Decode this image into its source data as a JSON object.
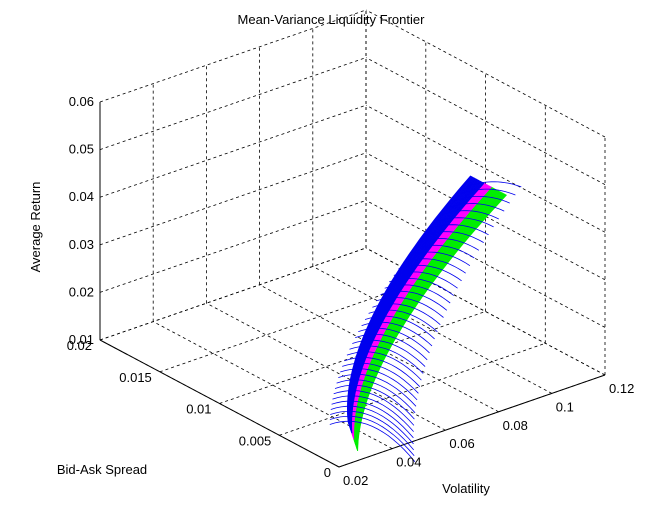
{
  "chart_data": {
    "type": "surface3d",
    "title": "Mean-Variance Liquidity Frontier",
    "axes": {
      "x": {
        "label": "Volatility",
        "range": [
          0.02,
          0.12
        ],
        "ticks": [
          "0.02",
          "0.04",
          "0.06",
          "0.08",
          "0.1",
          "0.12"
        ]
      },
      "y": {
        "label": "Bid-Ask Spread",
        "range": [
          0,
          0.02
        ],
        "ticks": [
          "0",
          "0.005",
          "0.01",
          "0.015",
          "0.02"
        ]
      },
      "z": {
        "label": "Average Return",
        "range": [
          0.01,
          0.06
        ],
        "ticks": [
          "0.01",
          "0.02",
          "0.03",
          "0.04",
          "0.05",
          "0.06"
        ]
      }
    },
    "grid": true,
    "surface": {
      "description_points": [
        {
          "volatility": 0.025,
          "spread": 0.0,
          "return": 0.012
        },
        {
          "volatility": 0.08,
          "spread": 0.0,
          "return": 0.055
        }
      ],
      "bands": [
        {
          "color": "#00ee00"
        },
        {
          "color": "#ff00ff"
        },
        {
          "color": "#0000ee"
        }
      ]
    }
  }
}
